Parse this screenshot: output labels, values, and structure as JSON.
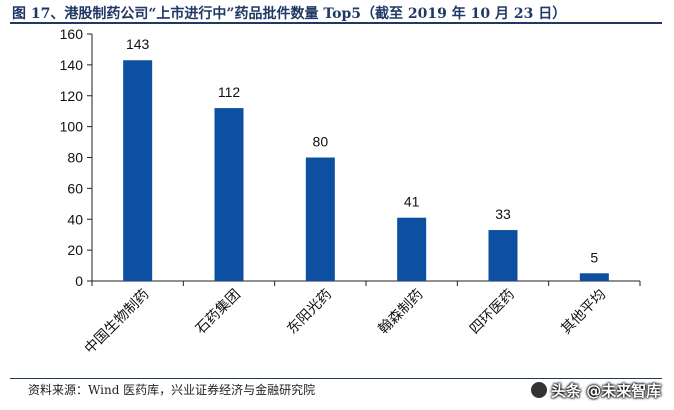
{
  "chart_data": {
    "type": "bar",
    "title": "图 17、港股制药公司“上市进行中”药品批件数量 Top5（截至 2019 年 10 月 23 日）",
    "categories": [
      "中国生物制药",
      "石药集团",
      "东阳光药",
      "翰森制药",
      "四环医药",
      "其他平均"
    ],
    "values": [
      143,
      112,
      80,
      41,
      33,
      5
    ],
    "ylim": [
      0,
      160
    ],
    "yticks": [
      0,
      20,
      40,
      60,
      80,
      100,
      120,
      140,
      160
    ],
    "xlabel": "",
    "ylabel": "",
    "grid": false,
    "legend": "none",
    "bar_color": "#0d4fa1"
  },
  "source": "资料来源：Wind 医药库，兴业证券经济与金融研究院",
  "watermark": {
    "text": "头条 @未来智库",
    "icon": "toutiao-logo-icon"
  }
}
